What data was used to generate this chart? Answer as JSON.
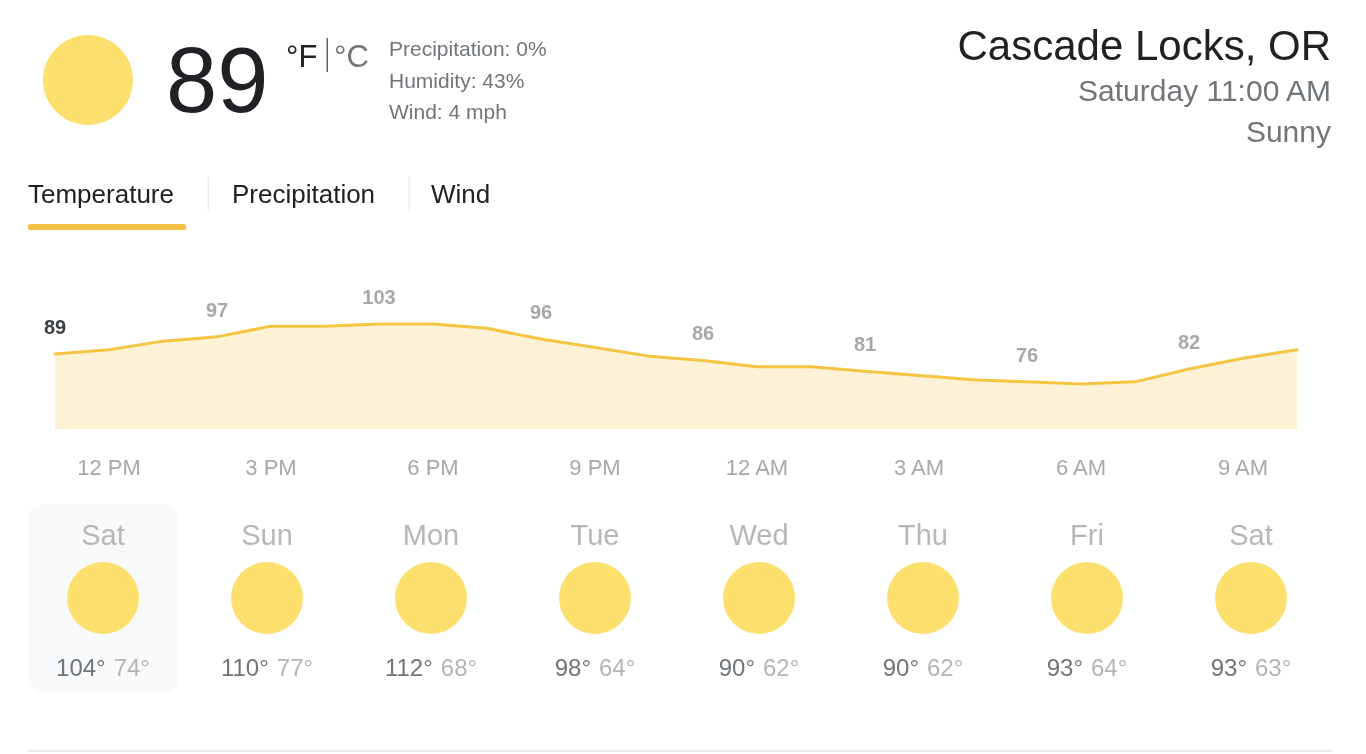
{
  "chart_data": [
    {
      "type": "other",
      "title": "Cascade Locks, OR",
      "subtitle": "Saturday 11:00 AM",
      "annotations": [
        "89",
        "°F",
        "°C",
        "Precipitation: 0%",
        "Humidity: 43%",
        "Wind: 4 mph",
        "Sunny",
        "Temperature",
        "Precipitation",
        "Wind"
      ]
    },
    {
      "type": "area",
      "categories": [
        null,
        "12 PM",
        null,
        null,
        "3 PM",
        null,
        null,
        "6 PM",
        null,
        null,
        "9 PM",
        null,
        null,
        "12 AM",
        null,
        null,
        "3 AM",
        null,
        null,
        "6 AM",
        null,
        null,
        "9 AM",
        null
      ],
      "values": [
        89,
        91,
        95,
        97,
        102,
        102,
        103,
        103,
        101,
        96,
        92,
        88,
        86,
        83,
        83,
        81,
        79,
        77,
        76,
        75,
        76,
        82,
        87,
        91
      ],
      "color": "#f5c441",
      "value_labels": [
        "89",
        null,
        null,
        "97",
        null,
        null,
        "103",
        null,
        null,
        "96",
        null,
        null,
        "86",
        null,
        null,
        "81",
        null,
        null,
        "76",
        null,
        null,
        "82",
        null,
        null
      ],
      "tick_labels": "x"
    },
    {
      "type": "other",
      "categories": [
        "Sat",
        "Sun",
        "Mon",
        "Tue",
        "Wed",
        "Thu",
        "Fri",
        "Sat"
      ],
      "annotations": [
        "104°",
        "74°",
        "110°",
        "77°",
        "112°",
        "68°",
        "98°",
        "64°",
        "90°",
        "62°",
        "90°",
        "62°",
        "93°",
        "64°",
        "93°",
        "63°"
      ]
    }
  ]
}
